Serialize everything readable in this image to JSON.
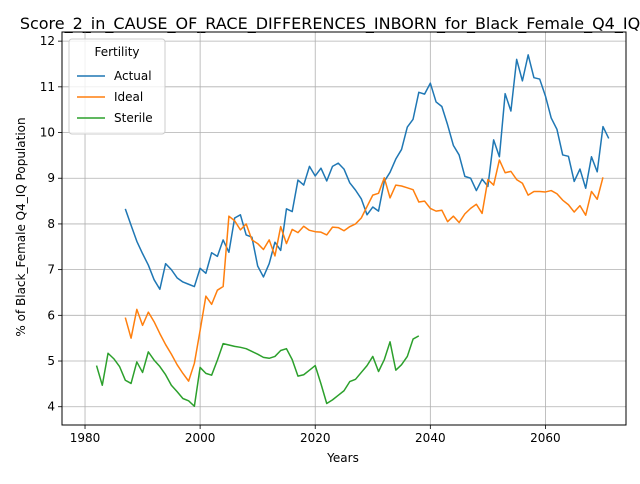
{
  "chart_data": {
    "type": "line",
    "title": "Score_2_in_CAUSE_OF_RACE_DIFFERENCES_INBORN_for_Black_Female_Q4_IQ",
    "xlabel": "Years",
    "ylabel": "% of Black_Female Q4_IQ Population",
    "xlim": [
      1976,
      2074
    ],
    "ylim": [
      3.6,
      12.2
    ],
    "x_ticks": [
      1980,
      2000,
      2020,
      2040,
      2060
    ],
    "y_ticks": [
      4,
      5,
      6,
      7,
      8,
      9,
      10,
      11,
      12
    ],
    "grid": true,
    "legend": {
      "title": "Fertility",
      "placement": "upper-left"
    },
    "series": [
      {
        "name": "Actual",
        "color": "#1f77b4",
        "points": [
          [
            1987,
            8.33
          ],
          [
            1988,
            7.97
          ],
          [
            1989,
            7.62
          ],
          [
            1990,
            7.35
          ],
          [
            1991,
            7.1
          ],
          [
            1992,
            6.78
          ],
          [
            1993,
            6.57
          ],
          [
            1994,
            7.13
          ],
          [
            1995,
            7.0
          ],
          [
            1996,
            6.82
          ],
          [
            1997,
            6.73
          ],
          [
            1998,
            6.68
          ],
          [
            1999,
            6.63
          ],
          [
            2000,
            7.03
          ],
          [
            2001,
            6.92
          ],
          [
            2002,
            7.37
          ],
          [
            2003,
            7.29
          ],
          [
            2004,
            7.65
          ],
          [
            2005,
            7.38
          ],
          [
            2006,
            8.13
          ],
          [
            2007,
            8.2
          ],
          [
            2008,
            7.76
          ],
          [
            2009,
            7.71
          ],
          [
            2010,
            7.08
          ],
          [
            2011,
            6.84
          ],
          [
            2012,
            7.13
          ],
          [
            2013,
            7.6
          ],
          [
            2014,
            7.42
          ],
          [
            2015,
            8.33
          ],
          [
            2016,
            8.27
          ],
          [
            2017,
            8.96
          ],
          [
            2018,
            8.85
          ],
          [
            2019,
            9.26
          ],
          [
            2020,
            9.05
          ],
          [
            2021,
            9.22
          ],
          [
            2022,
            8.94
          ],
          [
            2023,
            9.26
          ],
          [
            2024,
            9.33
          ],
          [
            2025,
            9.2
          ],
          [
            2026,
            8.9
          ],
          [
            2027,
            8.74
          ],
          [
            2028,
            8.55
          ],
          [
            2029,
            8.2
          ],
          [
            2030,
            8.37
          ],
          [
            2031,
            8.28
          ],
          [
            2032,
            8.93
          ],
          [
            2033,
            9.13
          ],
          [
            2034,
            9.42
          ],
          [
            2035,
            9.63
          ],
          [
            2036,
            10.12
          ],
          [
            2037,
            10.29
          ],
          [
            2038,
            10.88
          ],
          [
            2039,
            10.84
          ],
          [
            2040,
            11.08
          ],
          [
            2041,
            10.67
          ],
          [
            2042,
            10.57
          ],
          [
            2043,
            10.17
          ],
          [
            2044,
            9.72
          ],
          [
            2045,
            9.51
          ],
          [
            2046,
            9.04
          ],
          [
            2047,
            9.0
          ],
          [
            2048,
            8.73
          ],
          [
            2049,
            8.98
          ],
          [
            2050,
            8.82
          ],
          [
            2051,
            9.84
          ],
          [
            2052,
            9.47
          ],
          [
            2053,
            10.85
          ],
          [
            2054,
            10.47
          ],
          [
            2055,
            11.6
          ],
          [
            2056,
            11.13
          ],
          [
            2057,
            11.7
          ],
          [
            2058,
            11.2
          ],
          [
            2059,
            11.17
          ],
          [
            2060,
            10.8
          ],
          [
            2061,
            10.32
          ],
          [
            2062,
            10.07
          ],
          [
            2063,
            9.51
          ],
          [
            2064,
            9.48
          ],
          [
            2065,
            8.93
          ],
          [
            2066,
            9.2
          ],
          [
            2067,
            8.78
          ],
          [
            2068,
            9.47
          ],
          [
            2069,
            9.14
          ],
          [
            2070,
            10.13
          ],
          [
            2071,
            9.87
          ]
        ]
      },
      {
        "name": "Ideal",
        "color": "#ff7f0e",
        "points": [
          [
            1987,
            5.95
          ],
          [
            1988,
            5.5
          ],
          [
            1989,
            6.13
          ],
          [
            1990,
            5.78
          ],
          [
            1991,
            6.07
          ],
          [
            1992,
            5.86
          ],
          [
            1993,
            5.6
          ],
          [
            1994,
            5.36
          ],
          [
            1995,
            5.15
          ],
          [
            1996,
            4.92
          ],
          [
            1997,
            4.73
          ],
          [
            1998,
            4.56
          ],
          [
            1999,
            4.95
          ],
          [
            2000,
            5.67
          ],
          [
            2001,
            6.42
          ],
          [
            2002,
            6.24
          ],
          [
            2003,
            6.55
          ],
          [
            2004,
            6.63
          ],
          [
            2005,
            8.17
          ],
          [
            2006,
            8.07
          ],
          [
            2007,
            7.87
          ],
          [
            2008,
            8.0
          ],
          [
            2009,
            7.65
          ],
          [
            2010,
            7.57
          ],
          [
            2011,
            7.44
          ],
          [
            2012,
            7.65
          ],
          [
            2013,
            7.3
          ],
          [
            2014,
            7.94
          ],
          [
            2015,
            7.57
          ],
          [
            2016,
            7.88
          ],
          [
            2017,
            7.81
          ],
          [
            2018,
            7.95
          ],
          [
            2019,
            7.86
          ],
          [
            2020,
            7.83
          ],
          [
            2021,
            7.82
          ],
          [
            2022,
            7.76
          ],
          [
            2023,
            7.93
          ],
          [
            2024,
            7.92
          ],
          [
            2025,
            7.85
          ],
          [
            2026,
            7.94
          ],
          [
            2027,
            8.0
          ],
          [
            2028,
            8.13
          ],
          [
            2029,
            8.38
          ],
          [
            2030,
            8.63
          ],
          [
            2031,
            8.67
          ],
          [
            2032,
            9.01
          ],
          [
            2033,
            8.57
          ],
          [
            2034,
            8.85
          ],
          [
            2035,
            8.83
          ],
          [
            2036,
            8.79
          ],
          [
            2037,
            8.75
          ],
          [
            2038,
            8.48
          ],
          [
            2039,
            8.5
          ],
          [
            2040,
            8.34
          ],
          [
            2041,
            8.28
          ],
          [
            2042,
            8.3
          ],
          [
            2043,
            8.05
          ],
          [
            2044,
            8.17
          ],
          [
            2045,
            8.03
          ],
          [
            2046,
            8.22
          ],
          [
            2047,
            8.34
          ],
          [
            2048,
            8.43
          ],
          [
            2049,
            8.23
          ],
          [
            2050,
            8.97
          ],
          [
            2051,
            8.85
          ],
          [
            2052,
            9.4
          ],
          [
            2053,
            9.12
          ],
          [
            2054,
            9.15
          ],
          [
            2055,
            8.97
          ],
          [
            2056,
            8.89
          ],
          [
            2057,
            8.63
          ],
          [
            2058,
            8.71
          ],
          [
            2059,
            8.71
          ],
          [
            2060,
            8.7
          ],
          [
            2061,
            8.73
          ],
          [
            2062,
            8.66
          ],
          [
            2063,
            8.52
          ],
          [
            2064,
            8.42
          ],
          [
            2065,
            8.26
          ],
          [
            2066,
            8.4
          ],
          [
            2067,
            8.19
          ],
          [
            2068,
            8.71
          ],
          [
            2069,
            8.54
          ],
          [
            2070,
            9.02
          ]
        ]
      },
      {
        "name": "Sterile",
        "color": "#2ca02c",
        "points": [
          [
            1982,
            4.9
          ],
          [
            1983,
            4.47
          ],
          [
            1984,
            5.17
          ],
          [
            1985,
            5.05
          ],
          [
            1986,
            4.88
          ],
          [
            1987,
            4.58
          ],
          [
            1988,
            4.51
          ],
          [
            1989,
            4.98
          ],
          [
            1990,
            4.75
          ],
          [
            1991,
            5.2
          ],
          [
            1992,
            5.02
          ],
          [
            1993,
            4.88
          ],
          [
            1994,
            4.7
          ],
          [
            1995,
            4.47
          ],
          [
            1996,
            4.33
          ],
          [
            1997,
            4.18
          ],
          [
            1998,
            4.13
          ],
          [
            1999,
            4.01
          ],
          [
            2000,
            4.86
          ],
          [
            2001,
            4.73
          ],
          [
            2002,
            4.69
          ],
          [
            2003,
            5.02
          ],
          [
            2004,
            5.38
          ],
          [
            2005,
            5.35
          ],
          [
            2006,
            5.32
          ],
          [
            2007,
            5.3
          ],
          [
            2008,
            5.27
          ],
          [
            2009,
            5.21
          ],
          [
            2010,
            5.15
          ],
          [
            2011,
            5.08
          ],
          [
            2012,
            5.06
          ],
          [
            2013,
            5.1
          ],
          [
            2014,
            5.23
          ],
          [
            2015,
            5.27
          ],
          [
            2016,
            5.03
          ],
          [
            2017,
            4.67
          ],
          [
            2018,
            4.7
          ],
          [
            2019,
            4.8
          ],
          [
            2020,
            4.9
          ],
          [
            2021,
            4.5
          ],
          [
            2022,
            4.07
          ],
          [
            2023,
            4.15
          ],
          [
            2024,
            4.25
          ],
          [
            2025,
            4.35
          ],
          [
            2026,
            4.55
          ],
          [
            2027,
            4.6
          ],
          [
            2028,
            4.75
          ],
          [
            2029,
            4.9
          ],
          [
            2030,
            5.1
          ],
          [
            2031,
            4.77
          ],
          [
            2032,
            5.03
          ],
          [
            2033,
            5.42
          ],
          [
            2034,
            4.8
          ],
          [
            2035,
            4.92
          ],
          [
            2036,
            5.1
          ],
          [
            2037,
            5.48
          ],
          [
            2038,
            5.55
          ]
        ]
      }
    ]
  }
}
